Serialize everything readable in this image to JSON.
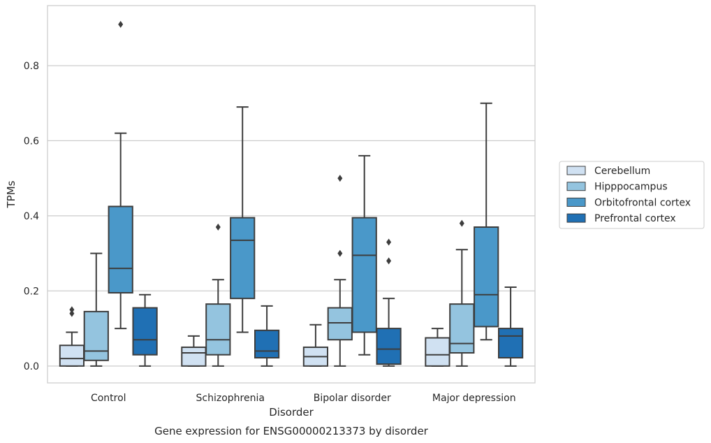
{
  "chart_data": {
    "type": "boxplot",
    "caption": "Gene expression for ENSG00000213373 by disorder",
    "xlabel": "Disorder",
    "ylabel": "TPMs",
    "ylim": [
      -0.045,
      0.96
    ],
    "yticks": [
      0.0,
      0.2,
      0.4,
      0.6,
      0.8
    ],
    "ytick_labels": [
      "0.0",
      "0.2",
      "0.4",
      "0.6",
      "0.8"
    ],
    "grid": "horizontal",
    "legend_placement": "right",
    "categories": [
      "Control",
      "Schizophrenia",
      "Bipolar disorder",
      "Major depression"
    ],
    "series": [
      {
        "name": "Cerebellum",
        "color": "#d0e1f2",
        "boxes": [
          {
            "whislo": 0.0,
            "q1": 0.0,
            "med": 0.02,
            "q3": 0.055,
            "whishi": 0.09,
            "fliers": [
              0.14,
              0.15
            ]
          },
          {
            "whislo": 0.0,
            "q1": 0.0,
            "med": 0.035,
            "q3": 0.05,
            "whishi": 0.08,
            "fliers": []
          },
          {
            "whislo": 0.0,
            "q1": 0.0,
            "med": 0.025,
            "q3": 0.05,
            "whishi": 0.11,
            "fliers": []
          },
          {
            "whislo": 0.0,
            "q1": 0.0,
            "med": 0.03,
            "q3": 0.075,
            "whishi": 0.1,
            "fliers": []
          }
        ]
      },
      {
        "name": "Hipppocampus",
        "color": "#94c4df",
        "boxes": [
          {
            "whislo": 0.0,
            "q1": 0.015,
            "med": 0.04,
            "q3": 0.145,
            "whishi": 0.3,
            "fliers": []
          },
          {
            "whislo": 0.0,
            "q1": 0.03,
            "med": 0.07,
            "q3": 0.165,
            "whishi": 0.23,
            "fliers": [
              0.37
            ]
          },
          {
            "whislo": 0.0,
            "q1": 0.07,
            "med": 0.115,
            "q3": 0.155,
            "whishi": 0.23,
            "fliers": [
              0.3,
              0.5
            ]
          },
          {
            "whislo": 0.0,
            "q1": 0.035,
            "med": 0.06,
            "q3": 0.165,
            "whishi": 0.31,
            "fliers": [
              0.38
            ]
          }
        ]
      },
      {
        "name": "Orbitofrontal cortex",
        "color": "#4a98c9",
        "boxes": [
          {
            "whislo": 0.1,
            "q1": 0.195,
            "med": 0.26,
            "q3": 0.425,
            "whishi": 0.62,
            "fliers": [
              0.91
            ]
          },
          {
            "whislo": 0.09,
            "q1": 0.18,
            "med": 0.335,
            "q3": 0.395,
            "whishi": 0.69,
            "fliers": []
          },
          {
            "whislo": 0.03,
            "q1": 0.09,
            "med": 0.295,
            "q3": 0.395,
            "whishi": 0.56,
            "fliers": []
          },
          {
            "whislo": 0.07,
            "q1": 0.105,
            "med": 0.19,
            "q3": 0.37,
            "whishi": 0.7,
            "fliers": []
          }
        ]
      },
      {
        "name": "Prefrontal cortex",
        "color": "#2070b4",
        "boxes": [
          {
            "whislo": 0.0,
            "q1": 0.03,
            "med": 0.07,
            "q3": 0.155,
            "whishi": 0.19,
            "fliers": []
          },
          {
            "whislo": 0.0,
            "q1": 0.022,
            "med": 0.04,
            "q3": 0.095,
            "whishi": 0.16,
            "fliers": []
          },
          {
            "whislo": 0.0,
            "q1": 0.005,
            "med": 0.045,
            "q3": 0.1,
            "whishi": 0.18,
            "fliers": [
              0.28,
              0.33
            ]
          },
          {
            "whislo": 0.0,
            "q1": 0.022,
            "med": 0.08,
            "q3": 0.1,
            "whishi": 0.21,
            "fliers": []
          }
        ]
      }
    ]
  }
}
